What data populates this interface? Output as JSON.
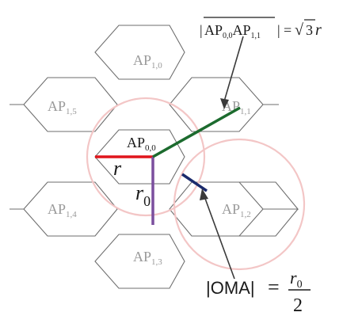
{
  "colors": {
    "hex_stroke": "#6e6e6e",
    "ring": "#f3c6c6",
    "segment_r": "#e0151b",
    "segment_r0": "#7b4f9e",
    "segment_distance": "#1c6b2e",
    "segment_oma": "#1a2a6c",
    "arrow": "#3a3a3a",
    "label_gray": "#9a9a9a"
  },
  "cells": {
    "center": {
      "name": "AP",
      "sub": "0,0"
    },
    "top": {
      "name": "AP",
      "sub": "1,0"
    },
    "upper_right": {
      "name": "AP",
      "sub": "1,1"
    },
    "lower_right": {
      "name": "AP",
      "sub": "1,2"
    },
    "bottom": {
      "name": "AP",
      "sub": "1,3"
    },
    "lower_left": {
      "name": "AP",
      "sub": "1,4"
    },
    "upper_left": {
      "name": "AP",
      "sub": "1,5"
    }
  },
  "labels": {
    "radius": "r",
    "inner_radius": "r",
    "inner_radius_sub": "0"
  },
  "formulas": {
    "distance": {
      "bar_left": "|",
      "ap1": "AP",
      "ap1_sub": "0,0",
      "ap2": "AP",
      "ap2_sub": "1,1",
      "bar_right": "|",
      "equals": "=",
      "root": "√",
      "coef": "3",
      "var": "r"
    },
    "oma": {
      "text": "|OMA|",
      "equals": "=",
      "numerator": "r",
      "numerator_sub": "0",
      "denominator": "2"
    }
  }
}
